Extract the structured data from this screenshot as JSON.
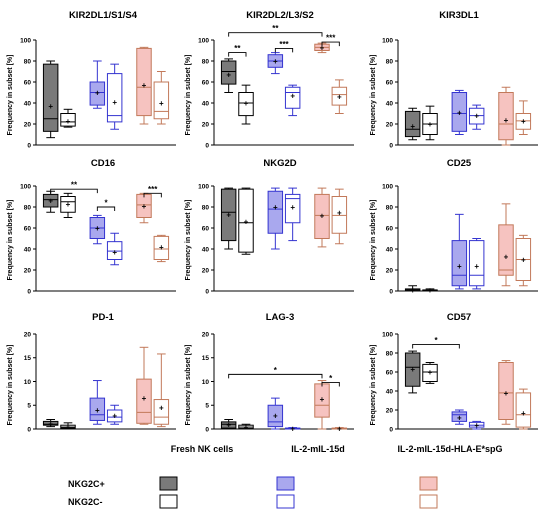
{
  "colors": {
    "fresh": "#7a7a7a",
    "il2": "#a9a8ee",
    "il2_border": "#3434d0",
    "hla": "#f6c3c0",
    "hla_border": "#c2795a",
    "neg_fill": "#ffffff",
    "axis": "#000000"
  },
  "legend": {
    "headers": [
      "Fresh NK cells",
      "IL-2-mIL-15d",
      "IL-2-mIL-15d-HLA-E*spG"
    ],
    "rows": [
      "NKG2C+",
      "NKG2C-"
    ]
  },
  "chart_data": [
    {
      "type": "box",
      "title": "KIR2DL1/S1/S4",
      "ylabel": "Frequency in subset [%]",
      "ylim": [
        0,
        100
      ],
      "yticks": [
        0,
        20,
        40,
        60,
        80,
        100
      ],
      "groups": [
        {
          "series": "Fresh NK cells",
          "subset": "NKG2C+",
          "min": 7,
          "q1": 13,
          "median": 25,
          "q3": 77,
          "max": 80,
          "mean": 37
        },
        {
          "series": "Fresh NK cells",
          "subset": "NKG2C-",
          "min": 17,
          "q1": 18,
          "median": 22,
          "q3": 30,
          "max": 34,
          "mean": 23
        },
        {
          "series": "IL-2-mIL-15d",
          "subset": "NKG2C+",
          "min": 35,
          "q1": 38,
          "median": 50,
          "q3": 60,
          "max": 80,
          "mean": 50
        },
        {
          "series": "IL-2-mIL-15d",
          "subset": "NKG2C-",
          "min": 15,
          "q1": 22,
          "median": 28,
          "q3": 68,
          "max": 77,
          "mean": 41
        },
        {
          "series": "IL-2-mIL-15d-HLA-E*spG",
          "subset": "NKG2C+",
          "min": 20,
          "q1": 28,
          "median": 55,
          "q3": 92,
          "max": 93,
          "mean": 57
        },
        {
          "series": "IL-2-mIL-15d-HLA-E*spG",
          "subset": "NKG2C-",
          "min": 20,
          "q1": 25,
          "median": 32,
          "q3": 60,
          "max": 70,
          "mean": 40
        }
      ],
      "significance": []
    },
    {
      "type": "box",
      "title": "KIR2DL2/L3/S2",
      "ylabel": "Frequency in subset [%]",
      "ylim": [
        0,
        100
      ],
      "yticks": [
        0,
        20,
        40,
        60,
        80,
        100
      ],
      "groups": [
        {
          "series": "Fresh NK cells",
          "subset": "NKG2C+",
          "min": 50,
          "q1": 58,
          "median": 70,
          "q3": 80,
          "max": 82,
          "mean": 67
        },
        {
          "series": "Fresh NK cells",
          "subset": "NKG2C-",
          "min": 20,
          "q1": 28,
          "median": 40,
          "q3": 50,
          "max": 57,
          "mean": 40
        },
        {
          "series": "IL-2-mIL-15d",
          "subset": "NKG2C+",
          "min": 68,
          "q1": 74,
          "median": 80,
          "q3": 86,
          "max": 88,
          "mean": 80
        },
        {
          "series": "IL-2-mIL-15d",
          "subset": "NKG2C-",
          "min": 28,
          "q1": 35,
          "median": 50,
          "q3": 55,
          "max": 57,
          "mean": 47
        },
        {
          "series": "IL-2-mIL-15d-HLA-E*spG",
          "subset": "NKG2C+",
          "min": 88,
          "q1": 90,
          "median": 93,
          "q3": 96,
          "max": 97,
          "mean": 93
        },
        {
          "series": "IL-2-mIL-15d-HLA-E*spG",
          "subset": "NKG2C-",
          "min": 30,
          "q1": 38,
          "median": 48,
          "q3": 55,
          "max": 62,
          "mean": 46
        }
      ],
      "significance": [
        {
          "from": 0,
          "to": 1,
          "label": "**",
          "y": 88
        },
        {
          "from": 2,
          "to": 3,
          "label": "***",
          "y": 92
        },
        {
          "from": 4,
          "to": 5,
          "label": "***",
          "y": 98
        },
        {
          "from": 0,
          "to": 4,
          "label": "**",
          "y": 107
        }
      ]
    },
    {
      "type": "box",
      "title": "KIR3DL1",
      "ylabel": "Frequency in subset [%]",
      "ylim": [
        0,
        100
      ],
      "yticks": [
        0,
        20,
        40,
        60,
        80,
        100
      ],
      "groups": [
        {
          "series": "Fresh NK cells",
          "subset": "NKG2C+",
          "min": 5,
          "q1": 8,
          "median": 15,
          "q3": 32,
          "max": 35,
          "mean": 18
        },
        {
          "series": "Fresh NK cells",
          "subset": "NKG2C-",
          "min": 5,
          "q1": 10,
          "median": 20,
          "q3": 30,
          "max": 37,
          "mean": 20
        },
        {
          "series": "IL-2-mIL-15d",
          "subset": "NKG2C+",
          "min": 10,
          "q1": 13,
          "median": 30,
          "q3": 50,
          "max": 52,
          "mean": 31
        },
        {
          "series": "IL-2-mIL-15d",
          "subset": "NKG2C-",
          "min": 15,
          "q1": 20,
          "median": 28,
          "q3": 35,
          "max": 38,
          "mean": 28
        },
        {
          "series": "IL-2-mIL-15d-HLA-E*spG",
          "subset": "NKG2C+",
          "min": 0,
          "q1": 5,
          "median": 20,
          "q3": 50,
          "max": 55,
          "mean": 24
        },
        {
          "series": "IL-2-mIL-15d-HLA-E*spG",
          "subset": "NKG2C-",
          "min": 10,
          "q1": 15,
          "median": 23,
          "q3": 30,
          "max": 42,
          "mean": 23
        }
      ],
      "significance": []
    },
    {
      "type": "box",
      "title": "CD16",
      "ylabel": "Frequency in subset [%]",
      "ylim": [
        0,
        100
      ],
      "yticks": [
        0,
        20,
        40,
        60,
        80,
        100
      ],
      "groups": [
        {
          "series": "Fresh NK cells",
          "subset": "NKG2C+",
          "min": 75,
          "q1": 80,
          "median": 87,
          "q3": 92,
          "max": 95,
          "mean": 86
        },
        {
          "series": "Fresh NK cells",
          "subset": "NKG2C-",
          "min": 70,
          "q1": 75,
          "median": 85,
          "q3": 90,
          "max": 93,
          "mean": 83
        },
        {
          "series": "IL-2-mIL-15d",
          "subset": "NKG2C+",
          "min": 45,
          "q1": 50,
          "median": 60,
          "q3": 70,
          "max": 72,
          "mean": 60
        },
        {
          "series": "IL-2-mIL-15d",
          "subset": "NKG2C-",
          "min": 25,
          "q1": 30,
          "median": 38,
          "q3": 47,
          "max": 55,
          "mean": 37
        },
        {
          "series": "IL-2-mIL-15d-HLA-E*spG",
          "subset": "NKG2C+",
          "min": 65,
          "q1": 70,
          "median": 82,
          "q3": 92,
          "max": 93,
          "mean": 81
        },
        {
          "series": "IL-2-mIL-15d-HLA-E*spG",
          "subset": "NKG2C-",
          "min": 28,
          "q1": 30,
          "median": 40,
          "q3": 52,
          "max": 53,
          "mean": 42
        }
      ],
      "significance": [
        {
          "from": 0,
          "to": 2,
          "label": "**",
          "y": 97
        },
        {
          "from": 2,
          "to": 3,
          "label": "*",
          "y": 80
        },
        {
          "from": 4,
          "to": 5,
          "label": "***",
          "y": 93
        }
      ]
    },
    {
      "type": "box",
      "title": "NKG2D",
      "ylabel": "Frequency in subset [%]",
      "ylim": [
        0,
        100
      ],
      "yticks": [
        0,
        20,
        40,
        60,
        80,
        100
      ],
      "groups": [
        {
          "series": "Fresh NK cells",
          "subset": "NKG2C+",
          "min": 40,
          "q1": 48,
          "median": 75,
          "q3": 97,
          "max": 98,
          "mean": 73
        },
        {
          "series": "Fresh NK cells",
          "subset": "NKG2C-",
          "min": 35,
          "q1": 37,
          "median": 65,
          "q3": 97,
          "max": 98,
          "mean": 66
        },
        {
          "series": "IL-2-mIL-15d",
          "subset": "NKG2C+",
          "min": 40,
          "q1": 55,
          "median": 78,
          "q3": 95,
          "max": 98,
          "mean": 80
        },
        {
          "series": "IL-2-mIL-15d",
          "subset": "NKG2C-",
          "min": 48,
          "q1": 65,
          "median": 88,
          "q3": 92,
          "max": 98,
          "mean": 80
        },
        {
          "series": "IL-2-mIL-15d-HLA-E*spG",
          "subset": "NKG2C+",
          "min": 42,
          "q1": 50,
          "median": 72,
          "q3": 92,
          "max": 98,
          "mean": 72
        },
        {
          "series": "IL-2-mIL-15d-HLA-E*spG",
          "subset": "NKG2C-",
          "min": 45,
          "q1": 55,
          "median": 72,
          "q3": 90,
          "max": 97,
          "mean": 75
        }
      ],
      "significance": []
    },
    {
      "type": "box",
      "title": "CD25",
      "ylabel": "Frequency in subset [%]",
      "ylim": [
        0,
        100
      ],
      "yticks": [
        0,
        20,
        40,
        60,
        80,
        100
      ],
      "groups": [
        {
          "series": "Fresh NK cells",
          "subset": "NKG2C+",
          "min": 0,
          "q1": 0,
          "median": 1,
          "q3": 2,
          "max": 5,
          "mean": 1
        },
        {
          "series": "Fresh NK cells",
          "subset": "NKG2C-",
          "min": 0,
          "q1": 0,
          "median": 1,
          "q3": 1,
          "max": 2,
          "mean": 1
        },
        {
          "series": "IL-2-mIL-15d",
          "subset": "NKG2C+",
          "min": 2,
          "q1": 5,
          "median": 15,
          "q3": 48,
          "max": 73,
          "mean": 24
        },
        {
          "series": "IL-2-mIL-15d",
          "subset": "NKG2C-",
          "min": 2,
          "q1": 5,
          "median": 15,
          "q3": 48,
          "max": 50,
          "mean": 24
        },
        {
          "series": "IL-2-mIL-15d-HLA-E*spG",
          "subset": "NKG2C+",
          "min": 5,
          "q1": 15,
          "median": 20,
          "q3": 63,
          "max": 83,
          "mean": 33
        },
        {
          "series": "IL-2-mIL-15d-HLA-E*spG",
          "subset": "NKG2C-",
          "min": 5,
          "q1": 10,
          "median": 30,
          "q3": 50,
          "max": 53,
          "mean": 30
        }
      ],
      "significance": []
    },
    {
      "type": "box",
      "title": "PD-1",
      "ylabel": "Frequency in subset [%]",
      "ylim": [
        0,
        20
      ],
      "yticks": [
        0,
        5,
        10,
        15,
        20
      ],
      "groups": [
        {
          "series": "Fresh NK cells",
          "subset": "NKG2C+",
          "min": 0.5,
          "q1": 0.8,
          "median": 1,
          "q3": 1.6,
          "max": 2,
          "mean": 1.2
        },
        {
          "series": "Fresh NK cells",
          "subset": "NKG2C-",
          "min": 0,
          "q1": 0.2,
          "median": 0.4,
          "q3": 0.8,
          "max": 1.3,
          "mean": 0.5
        },
        {
          "series": "IL-2-mIL-15d",
          "subset": "NKG2C+",
          "min": 1,
          "q1": 1.8,
          "median": 3,
          "q3": 6.5,
          "max": 10.2,
          "mean": 4
        },
        {
          "series": "IL-2-mIL-15d",
          "subset": "NKG2C-",
          "min": 1,
          "q1": 1.5,
          "median": 2.5,
          "q3": 4,
          "max": 5,
          "mean": 2.8
        },
        {
          "series": "IL-2-mIL-15d-HLA-E*spG",
          "subset": "NKG2C+",
          "min": 1,
          "q1": 1.2,
          "median": 3.5,
          "q3": 10.5,
          "max": 17.2,
          "mean": 6.5
        },
        {
          "series": "IL-2-mIL-15d-HLA-E*spG",
          "subset": "NKG2C-",
          "min": 0.5,
          "q1": 1,
          "median": 2.5,
          "q3": 6.2,
          "max": 15.8,
          "mean": 4.5
        }
      ],
      "significance": []
    },
    {
      "type": "box",
      "title": "LAG-3",
      "ylabel": "Frequency in subset [%]",
      "ylim": [
        0,
        20
      ],
      "yticks": [
        0,
        5,
        10,
        15,
        20
      ],
      "groups": [
        {
          "series": "Fresh NK cells",
          "subset": "NKG2C+",
          "min": 0,
          "q1": 0.2,
          "median": 1,
          "q3": 1.5,
          "max": 2,
          "mean": 0.9
        },
        {
          "series": "Fresh NK cells",
          "subset": "NKG2C-",
          "min": 0,
          "q1": 0.1,
          "median": 0.4,
          "q3": 0.8,
          "max": 1,
          "mean": 0.4
        },
        {
          "series": "IL-2-mIL-15d",
          "subset": "NKG2C+",
          "min": 0,
          "q1": 0.5,
          "median": 1.5,
          "q3": 5,
          "max": 6.5,
          "mean": 2.8
        },
        {
          "series": "IL-2-mIL-15d",
          "subset": "NKG2C-",
          "min": 0,
          "q1": 0,
          "median": 0.1,
          "q3": 0.2,
          "max": 0.3,
          "mean": 0.1
        },
        {
          "series": "IL-2-mIL-15d-HLA-E*spG",
          "subset": "NKG2C+",
          "min": 0,
          "q1": 2.5,
          "median": 5,
          "q3": 9.5,
          "max": 10.2,
          "mean": 6.3
        },
        {
          "series": "IL-2-mIL-15d-HLA-E*spG",
          "subset": "NKG2C-",
          "min": 0,
          "q1": 0,
          "median": 0.1,
          "q3": 0.2,
          "max": 0.3,
          "mean": 0.1
        }
      ],
      "significance": [
        {
          "from": 0,
          "to": 4,
          "label": "*",
          "y": 11.5
        },
        {
          "from": 4,
          "to": 5,
          "label": "*",
          "y": 9.8
        }
      ]
    },
    {
      "type": "box",
      "title": "CD57",
      "ylabel": "Frequency in subset [%]",
      "ylim": [
        0,
        100
      ],
      "yticks": [
        0,
        20,
        40,
        60,
        80,
        100
      ],
      "groups": [
        {
          "series": "Fresh NK cells",
          "subset": "NKG2C+",
          "min": 38,
          "q1": 45,
          "median": 65,
          "q3": 80,
          "max": 82,
          "mean": 63
        },
        {
          "series": "Fresh NK cells",
          "subset": "NKG2C-",
          "min": 48,
          "q1": 50,
          "median": 60,
          "q3": 68,
          "max": 70,
          "mean": 60
        },
        {
          "series": "IL-2-mIL-15d",
          "subset": "NKG2C+",
          "min": 5,
          "q1": 8,
          "median": 15,
          "q3": 18,
          "max": 20,
          "mean": 12
        },
        {
          "series": "IL-2-mIL-15d",
          "subset": "NKG2C-",
          "min": 0,
          "q1": 2,
          "median": 4,
          "q3": 7,
          "max": 8,
          "mean": 4
        },
        {
          "series": "IL-2-mIL-15d-HLA-E*spG",
          "subset": "NKG2C+",
          "min": 5,
          "q1": 10,
          "median": 38,
          "q3": 70,
          "max": 72,
          "mean": 38
        },
        {
          "series": "IL-2-mIL-15d-HLA-E*spG",
          "subset": "NKG2C-",
          "min": 0,
          "q1": 2,
          "median": 15,
          "q3": 38,
          "max": 42,
          "mean": 17
        }
      ],
      "significance": [
        {
          "from": 0,
          "to": 2,
          "label": "*",
          "y": 89
        }
      ]
    }
  ]
}
